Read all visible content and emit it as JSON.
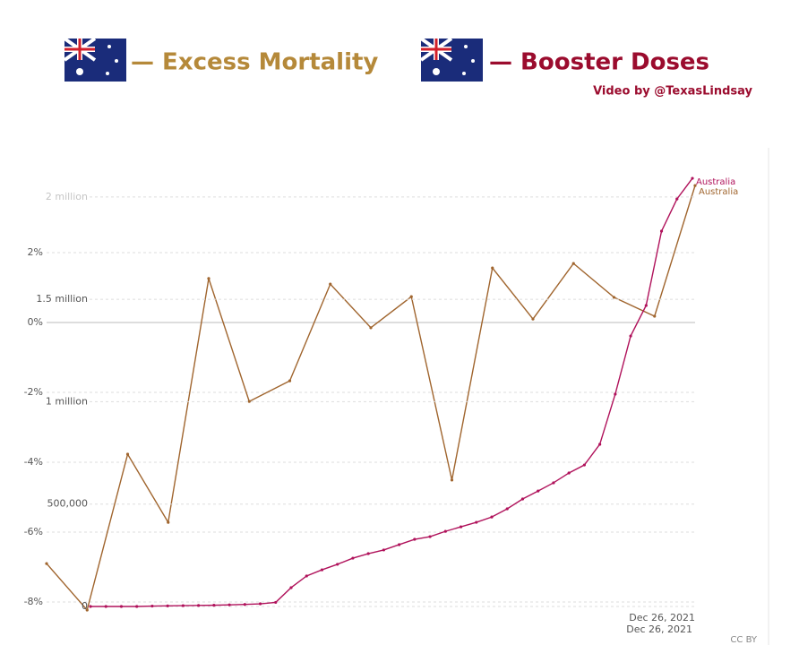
{
  "header": {
    "left_title": "— Excess Mortality",
    "right_title": "— Booster Doses",
    "byline": "Video by @TexasLindsay"
  },
  "credit": "CC BY",
  "chart_data": [
    {
      "type": "line",
      "categories": [
        null,
        null,
        null,
        null,
        null,
        null,
        null,
        null,
        null,
        null,
        null,
        null,
        null,
        null,
        null,
        null,
        "Dec 26, 2021"
      ],
      "series": [
        {
          "name": "Australia",
          "color": "#a0652e",
          "values": [
            -6.9,
            -8.23,
            -3.77,
            -5.72,
            1.26,
            -2.26,
            -1.67,
            1.1,
            -0.15,
            0.74,
            -4.51,
            1.56,
            0.1,
            1.69,
            0.72,
            0.18,
            3.92
          ]
        }
      ],
      "ylim": [
        -8.3,
        4.0
      ],
      "yticks": [
        {
          "value": -8,
          "label": "-8%"
        },
        {
          "value": -6,
          "label": "-6%"
        },
        {
          "value": -4,
          "label": "-4%"
        },
        {
          "value": -2,
          "label": "-2%"
        },
        {
          "value": 0,
          "label": "0%"
        },
        {
          "value": 2,
          "label": "2%"
        }
      ],
      "grid": true
    },
    {
      "type": "line",
      "categories": [
        null,
        null,
        null,
        null,
        null,
        null,
        null,
        null,
        null,
        null,
        null,
        null,
        null,
        null,
        null,
        null,
        null,
        null,
        null,
        null,
        null,
        null,
        null,
        null,
        null,
        null,
        null,
        null,
        null,
        null,
        null,
        null,
        null,
        null,
        null,
        null,
        null,
        null,
        null,
        "Dec 26, 2021"
      ],
      "series": [
        {
          "name": "Australia",
          "color": "#b0125b",
          "values": [
            0,
            0,
            0,
            0,
            2000,
            3000,
            4000,
            5000,
            6000,
            8000,
            10000,
            13000,
            20000,
            92000,
            149000,
            179000,
            206000,
            236000,
            258000,
            276000,
            302000,
            328000,
            341000,
            367000,
            389000,
            411000,
            437000,
            477000,
            525000,
            564000,
            604000,
            652000,
            691000,
            792000,
            1037000,
            1321000,
            1470000,
            1833000,
            1990000,
            2091000
          ]
        }
      ],
      "ylim": [
        0,
        2100000
      ],
      "yticks": [
        0,
        {
          "value": 500000,
          "label": "500,000"
        },
        {
          "value": 1000000,
          "label": "1 million"
        },
        {
          "value": 1500000,
          "label": "1.5 million"
        },
        {
          "value": 2000000,
          "label": "2 million"
        }
      ],
      "grid": true
    }
  ]
}
